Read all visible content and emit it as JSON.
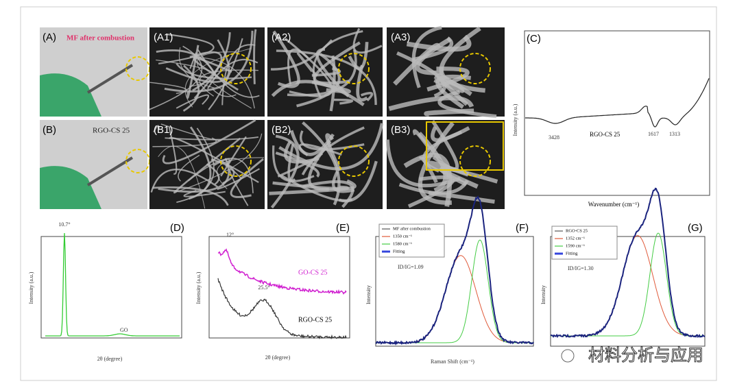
{
  "panels": {
    "a": "(A)",
    "a1": "(A1)",
    "a2": "(A2)",
    "a3": "(A3)",
    "b": "(B)",
    "b1": "(B1)",
    "b2": "(B2)",
    "b3": "(B3)",
    "c": "(C)",
    "d": "(D)",
    "e": "(E)",
    "f": "(F)",
    "g": "(G)"
  },
  "photo_labels": {
    "a": "MF after combustion",
    "b": "RGO-CS 25"
  },
  "panel_c": {
    "sample": "RGO-CS 25",
    "x_label": "Wavenumber (cm⁻¹)",
    "y_label": "Intensity (a.u.)",
    "peaks": [
      "3428",
      "1617",
      "1313"
    ]
  },
  "panel_d": {
    "peak": "10.7°",
    "sample": "GO",
    "x_label": "2θ (degree)",
    "y_label": "Intensity (a.u.)"
  },
  "panel_e": {
    "peak_top": "12°",
    "peak_bottom": "25.5°",
    "sample_top": "GO-CS 25",
    "sample_bottom": "RGO-CS 25",
    "x_label": "2θ (degree)",
    "y_label": "Intensity (a.u.)"
  },
  "panel_f": {
    "legend": [
      "MF after combustion",
      "1350 cm⁻¹",
      "1580 cm⁻¹",
      "Fitting"
    ],
    "ratio": "ID/IG=1.09",
    "x_label": "Raman Shift (cm⁻¹)",
    "y_label": "Intensity"
  },
  "panel_g": {
    "legend": [
      "RGO-CS 25",
      "1352 cm⁻¹",
      "1590 cm⁻¹",
      "Fitting"
    ],
    "ratio": "ID/IG=1.30",
    "y_label": "Intensity"
  },
  "watermark": "材料分析与应用"
}
